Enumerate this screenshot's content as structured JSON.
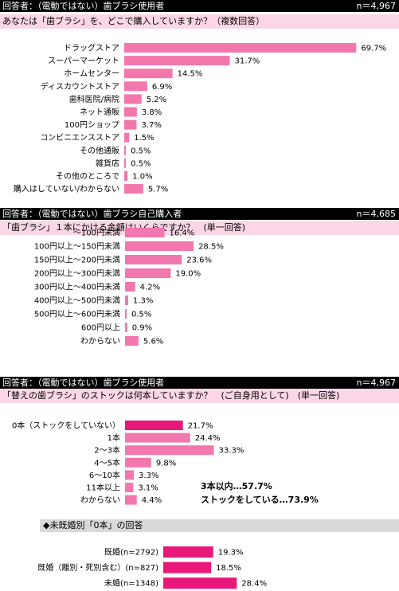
{
  "colors": {
    "pink": "#f277ad",
    "magenta": "#e8177a",
    "header_bg": "#000000",
    "question_bg": "#fbd6e6",
    "subheading_bg": "#d9d9d9"
  },
  "panels": [
    {
      "header_left": "回答者：（電動ではない）歯ブラシ使用者",
      "header_right": "n＝4,967",
      "question": "あなたは「歯ブラシ」を、どこで購入していますか？（複数回答）"
    },
    {
      "header_left": "回答者：（電動ではない）歯ブラシ自己購入者",
      "header_right": "n＝4,685",
      "question": "「歯ブラシ」１本にかける金額はいくらですか？　(単一回答)"
    },
    {
      "header_left": "回答者：（電動ではない）歯ブラシ使用者",
      "header_right": "n＝4,967",
      "question": "「替えの歯ブラシ」のストックは何本していますか？　(ご自身用として)　(単一回答)",
      "summary_1": "3本以内…57.7%",
      "summary_2": "ストックをしている…73.9%",
      "subheading": "◆未既婚別「0本」の回答"
    }
  ],
  "chart_data": [
    {
      "type": "bar",
      "orientation": "horizontal",
      "categories": [
        "ドラッグストア",
        "スーパーマーケット",
        "ホームセンター",
        "ディスカウントストア",
        "歯科医院/病院",
        "ネット通販",
        "100円ショップ",
        "コンビニエンスストア",
        "その他通販",
        "雑貨店",
        "その他のところで",
        "購入はしていない/わからない"
      ],
      "values": [
        69.7,
        31.7,
        14.5,
        6.9,
        5.2,
        3.8,
        3.7,
        1.5,
        0.5,
        0.5,
        1.0,
        5.7
      ],
      "value_labels": [
        "69.7%",
        "31.7%",
        "14.5%",
        "6.9%",
        "5.2%",
        "3.8%",
        "3.7%",
        "1.5%",
        "0.5%",
        "0.5%",
        "1.0%",
        "5.7%"
      ],
      "bar_colors": [
        "#f277ad",
        "#f277ad",
        "#f277ad",
        "#f277ad",
        "#f277ad",
        "#f277ad",
        "#f277ad",
        "#f277ad",
        "#f277ad",
        "#f277ad",
        "#f277ad",
        "#f277ad"
      ]
    },
    {
      "type": "bar",
      "orientation": "horizontal",
      "categories": [
        "～100円未満",
        "100円以上～150円未満",
        "150円以上～200円未満",
        "200円以上～300円未満",
        "300円以上～400円未満",
        "400円以上～500円未満",
        "500円以上～600円未満",
        "600円以上",
        "わからない"
      ],
      "values": [
        16.4,
        28.5,
        23.6,
        19.0,
        4.2,
        1.3,
        0.5,
        0.9,
        5.6
      ],
      "value_labels": [
        "16.4%",
        "28.5%",
        "23.6%",
        "19.0%",
        "4.2%",
        "1.3%",
        "0.5%",
        "0.9%",
        "5.6%"
      ],
      "bar_colors": [
        "#f277ad",
        "#f277ad",
        "#f277ad",
        "#f277ad",
        "#f277ad",
        "#f277ad",
        "#f277ad",
        "#f277ad",
        "#f277ad"
      ]
    },
    {
      "type": "bar",
      "orientation": "horizontal",
      "categories": [
        "0本（ストックをしていない）",
        "1本",
        "2～3本",
        "4～5本",
        "6～10本",
        "11本以上",
        "わからない"
      ],
      "values": [
        21.7,
        24.4,
        33.3,
        9.8,
        3.3,
        3.1,
        4.4
      ],
      "value_labels": [
        "21.7%",
        "24.4%",
        "33.3%",
        "9.8%",
        "3.3%",
        "3.1%",
        "4.4%"
      ],
      "bar_colors": [
        "#e8177a",
        "#f277ad",
        "#f277ad",
        "#f277ad",
        "#f277ad",
        "#f277ad",
        "#f277ad"
      ]
    },
    {
      "type": "bar",
      "orientation": "horizontal",
      "categories": [
        "既婚(n=2792)",
        "既婚（離別・死別含む）(n=827)",
        "未婚(n=1348)"
      ],
      "values": [
        19.3,
        18.5,
        28.4
      ],
      "value_labels": [
        "19.3%",
        "18.5%",
        "28.4%"
      ],
      "bar_colors": [
        "#e8177a",
        "#e8177a",
        "#e8177a"
      ]
    }
  ]
}
